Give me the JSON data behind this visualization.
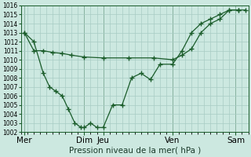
{
  "title": "Pression niveau de la mer( hPa )",
  "bg_color": "#cce8e0",
  "grid_color": "#a8ccc4",
  "line_color": "#1a5c2a",
  "ylim": [
    1002,
    1016
  ],
  "yticks": [
    1002,
    1003,
    1004,
    1005,
    1006,
    1007,
    1008,
    1009,
    1010,
    1011,
    1012,
    1013,
    1014,
    1015,
    1016
  ],
  "xlim": [
    0,
    36
  ],
  "day_positions": [
    0.5,
    10,
    13,
    24,
    34
  ],
  "day_labels": [
    "Mer",
    "Dim",
    "Jeu",
    "Ven",
    "Sam"
  ],
  "series1_x": [
    0.5,
    2,
    3.5,
    5,
    6.5,
    8,
    10,
    13,
    17,
    21,
    24,
    25.5,
    27,
    28.5,
    30,
    31.5,
    33,
    34.5
  ],
  "series1_y": [
    1013,
    1011,
    1011,
    1010.8,
    1010.7,
    1010.5,
    1010.3,
    1010.2,
    1010.2,
    1010.2,
    1010.0,
    1010.5,
    1011.2,
    1013.0,
    1014.0,
    1014.5,
    1015.5,
    1015.5
  ],
  "series2_x": [
    0.5,
    2,
    3.5,
    4.5,
    5.5,
    6.5,
    7.5,
    8.5,
    9.5,
    10,
    11,
    12,
    13,
    14.5,
    16,
    17.5,
    19,
    20.5,
    22,
    24,
    25.5,
    27,
    28.5,
    30,
    31.5,
    33,
    34.5,
    35.5
  ],
  "series2_y": [
    1013,
    1012,
    1008.5,
    1007,
    1006.5,
    1006,
    1004.5,
    1003,
    1002.5,
    1002.5,
    1003,
    1002.5,
    1002.5,
    1005,
    1005,
    1008,
    1008.5,
    1007.8,
    1009.5,
    1009.5,
    1011,
    1013,
    1014,
    1014.5,
    1015,
    1015.5,
    1015.5,
    1015.5
  ],
  "tick_fontsize": 5.5,
  "xlabel_fontsize": 7.5
}
